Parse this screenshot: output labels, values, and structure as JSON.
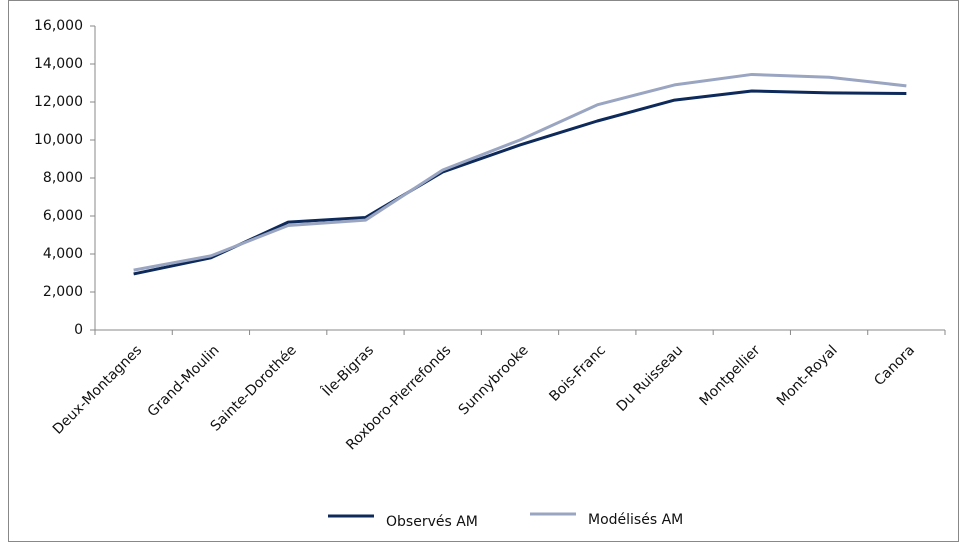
{
  "chart_data": {
    "type": "line",
    "categories": [
      "Deux-Montagnes",
      "Grand-Moulin",
      "Sainte-Dorothée",
      "Île-Bigras",
      "Roxboro-Pierrefonds",
      "Sunnybrooke",
      "Bois-Franc",
      "Du Ruisseau",
      "Montpellier",
      "Mont-Royal",
      "Canora"
    ],
    "series": [
      {
        "name": "Observés AM",
        "color": "#0d2a5a",
        "values": [
          2950,
          3800,
          5680,
          5920,
          8320,
          9740,
          11000,
          12100,
          12580,
          12480,
          12450
        ]
      },
      {
        "name": "Modélisés AM",
        "color": "#9aa5c2",
        "values": [
          3150,
          3900,
          5500,
          5780,
          8420,
          10000,
          11850,
          12900,
          13450,
          13300,
          12850
        ]
      }
    ],
    "ylim": [
      0,
      16000
    ],
    "yticks": [
      0,
      {
        "value": 2000,
        "label": "2,000"
      },
      {
        "value": 4000,
        "label": "4,000"
      },
      {
        "value": 6000,
        "label": "6,000"
      },
      {
        "value": 8000,
        "label": "8,000"
      },
      {
        "value": 10000,
        "label": "10,000"
      },
      {
        "value": 12000,
        "label": "12,000"
      },
      {
        "value": 14000,
        "label": "14,000"
      },
      {
        "value": 16000,
        "label": "16,000"
      }
    ],
    "legend": "bottom"
  }
}
